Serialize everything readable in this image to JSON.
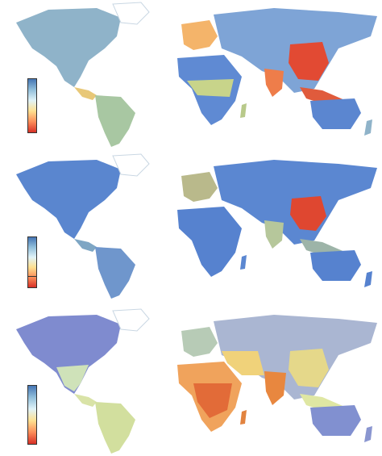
{
  "figure": {
    "panels": [
      {
        "id": "panel-a",
        "legend": {
          "colors": [
            "#4575b4",
            "#91bfdb",
            "#e0f3f8",
            "#fee090",
            "#fc8d59",
            "#d73027"
          ]
        }
      },
      {
        "id": "panel-b",
        "legend": {
          "colors": [
            "#4575b4",
            "#91bfdb",
            "#e0f3f8",
            "#fee090",
            "#fc8d59",
            "#d73027"
          ]
        }
      },
      {
        "id": "panel-c",
        "legend": {
          "colors": [
            "#4575b4",
            "#91bfdb",
            "#e0f3f8",
            "#fee090",
            "#fc8d59",
            "#d73027"
          ]
        }
      }
    ]
  }
}
